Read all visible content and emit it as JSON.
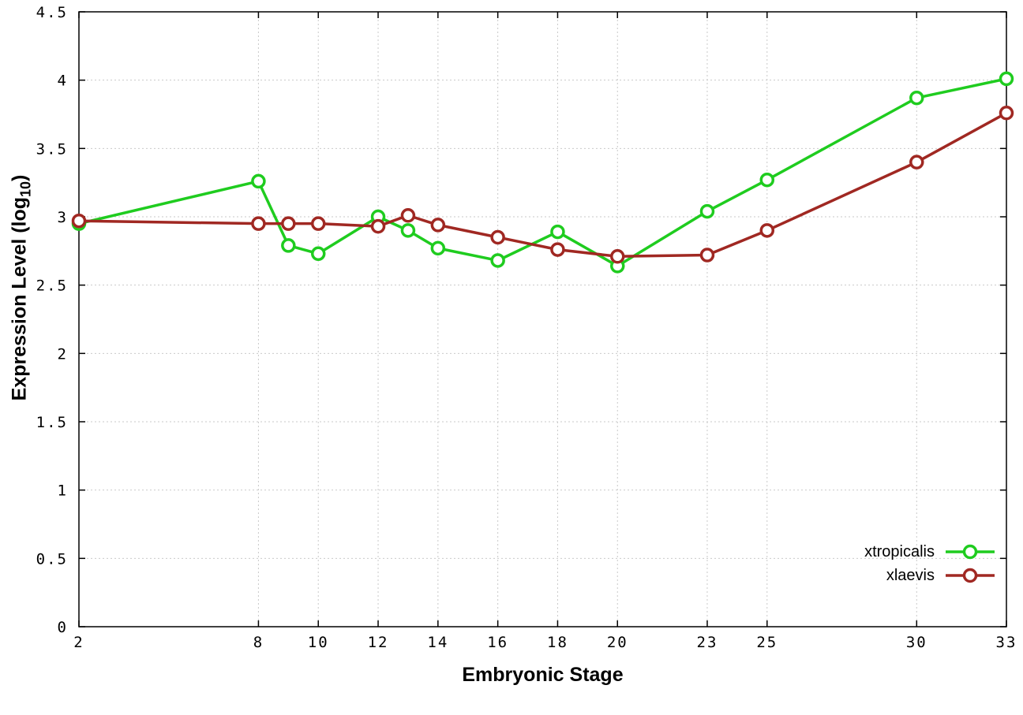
{
  "chart_data": {
    "type": "line",
    "title": "",
    "xlabel": "Embryonic Stage",
    "ylabel": "Expression Level (log10)",
    "ylabel_parts": {
      "main": "Expression Level (log",
      "sub": "10",
      "close": ")"
    },
    "xlim": [
      2,
      33
    ],
    "ylim": [
      0,
      4.5
    ],
    "x": [
      2,
      8,
      9,
      10,
      12,
      13,
      14,
      16,
      18,
      20,
      23,
      25,
      30,
      33
    ],
    "xticks": [
      2,
      8,
      10,
      12,
      14,
      16,
      18,
      20,
      23,
      25,
      30,
      33
    ],
    "yticks": [
      0,
      0.5,
      1,
      1.5,
      2,
      2.5,
      3,
      3.5,
      4,
      4.5
    ],
    "grid": true,
    "legend_position": "bottom-right-inside",
    "series": [
      {
        "name": "xtropicalis",
        "color": "#1fcc1f",
        "values": [
          2.95,
          3.26,
          2.79,
          2.73,
          3.0,
          2.9,
          2.77,
          2.68,
          2.89,
          2.64,
          3.04,
          3.27,
          3.87,
          4.01
        ]
      },
      {
        "name": "xlaevis",
        "color": "#a02822",
        "values": [
          2.97,
          2.95,
          2.95,
          2.95,
          2.93,
          3.01,
          2.94,
          2.85,
          2.76,
          2.71,
          2.72,
          2.9,
          3.4,
          3.76
        ]
      }
    ]
  }
}
